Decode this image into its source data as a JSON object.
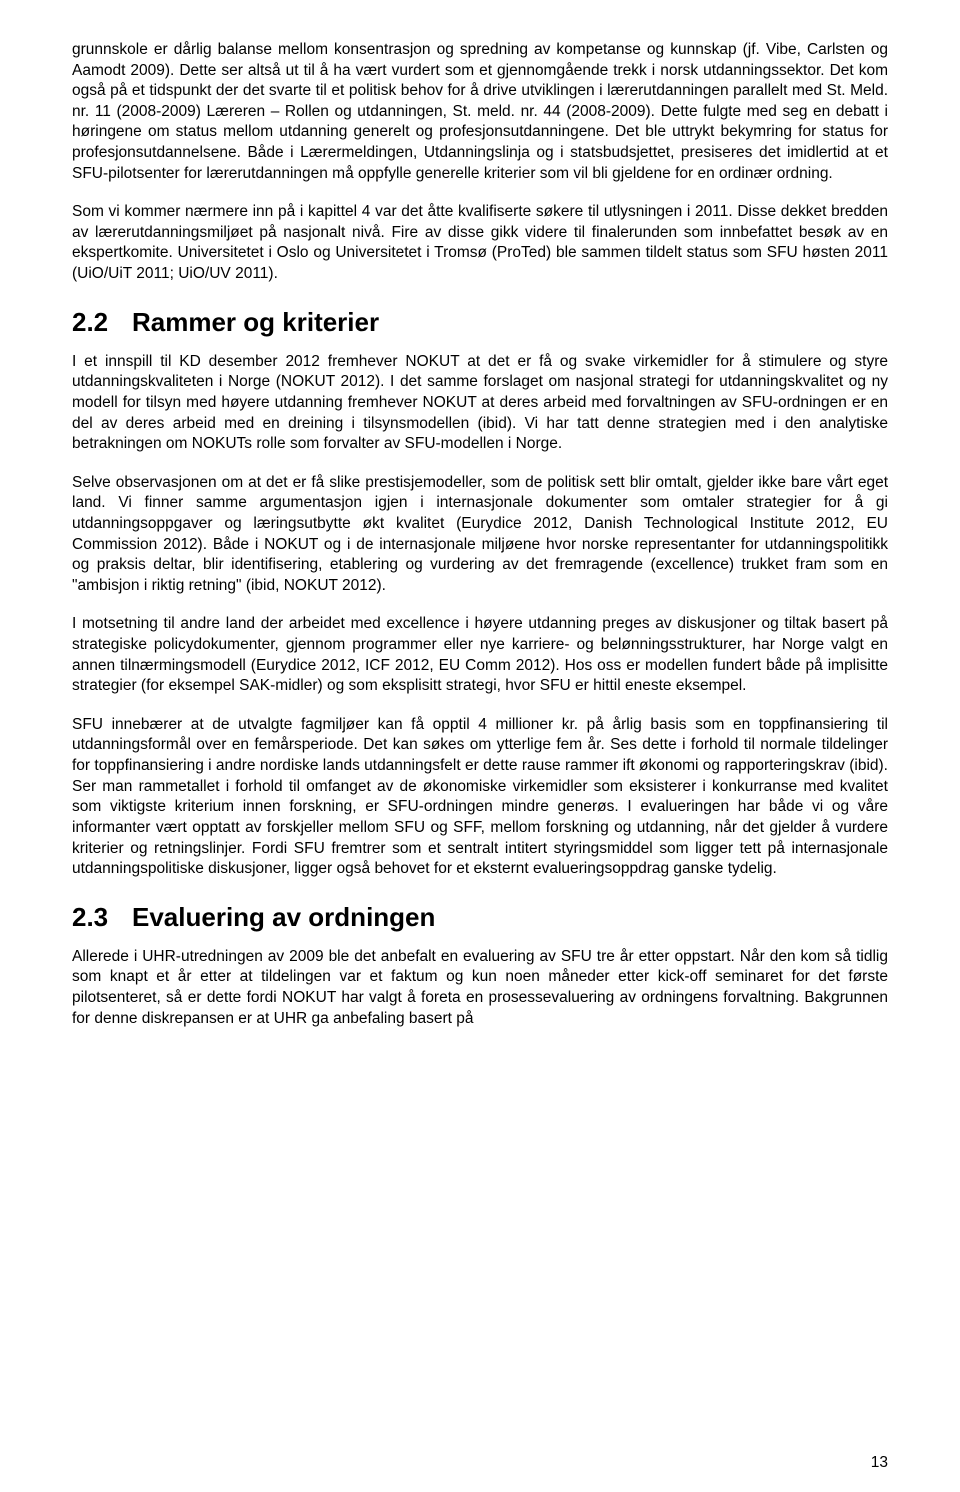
{
  "paragraphs": {
    "p1": "grunnskole er dårlig balanse mellom konsentrasjon og spredning av kompetanse og kunnskap (jf. Vibe, Carlsten og Aamodt 2009). Dette ser altså ut til å ha vært vurdert som et gjennomgående trekk i norsk utdanningssektor. Det kom også på et tidspunkt der det svarte til et politisk behov for å drive utviklingen i lærerutdanningen parallelt med St. Meld. nr. 11 (2008-2009) Læreren – Rollen og utdanningen, St. meld. nr. 44 (2008-2009). Dette fulgte med seg en debatt i høringene om status mellom utdanning generelt og profesjonsutdanningene. Det ble uttrykt bekymring for status for profesjonsutdannelsene. Både i Lærermeldingen, Utdanningslinja og i statsbudsjettet, presiseres det imidlertid at et SFU-pilotsenter for lærerutdanningen må oppfylle generelle kriterier som vil bli gjeldene for en ordinær ordning.",
    "p2": "Som vi kommer nærmere inn på i kapittel 4 var det åtte kvalifiserte søkere til utlysningen i 2011. Disse dekket bredden av lærerutdanningsmiljøet på nasjonalt nivå. Fire av disse gikk videre til finalerunden som innbefattet besøk av en ekspertkomite. Universitetet i Oslo og Universitetet i Tromsø (ProTed) ble sammen tildelt status som SFU høsten 2011 (UiO/UiT 2011; UiO/UV 2011).",
    "h_22_num": "2.2",
    "h_22_title": "Rammer og kriterier",
    "p3": "I et innspill til KD desember 2012 fremhever NOKUT at det er få og svake virkemidler for å stimulere og styre utdanningskvaliteten i Norge (NOKUT 2012). I det samme forslaget om nasjonal strategi for utdanningskvalitet og ny modell for tilsyn med høyere utdanning fremhever NOKUT at deres arbeid med forvaltningen av SFU-ordningen er en del av deres arbeid med en dreining i tilsynsmodellen (ibid). Vi har tatt denne strategien med i den analytiske betrakningen om NOKUTs rolle som forvalter av SFU-modellen i Norge.",
    "p4": "Selve observasjonen om at det er få slike prestisjemodeller, som de politisk sett blir omtalt, gjelder ikke bare vårt eget land. Vi finner samme argumentasjon igjen i internasjonale dokumenter som omtaler strategier for å gi utdanningsoppgaver og læringsutbytte økt kvalitet (Eurydice 2012, Danish Technological Institute 2012, EU Commission 2012). Både i NOKUT og i de internasjonale miljøene hvor norske representanter for utdanningspolitikk og praksis deltar, blir identifisering, etablering og vurdering av det fremragende (excellence) trukket fram som en \"ambisjon i riktig retning\" (ibid, NOKUT 2012).",
    "p5": "I motsetning til andre land der arbeidet med excellence i høyere utdanning preges av diskusjoner og tiltak basert på strategiske policydokumenter, gjennom programmer eller nye karriere- og belønningsstrukturer, har Norge valgt en annen tilnærmingsmodell (Eurydice 2012, ICF 2012, EU Comm 2012). Hos oss er modellen fundert både på implisitte strategier (for eksempel SAK-midler) og som eksplisitt strategi, hvor SFU er hittil eneste eksempel.",
    "p6": "SFU innebærer at de utvalgte fagmiljøer kan få opptil 4 millioner kr. på årlig basis som en toppfinansiering til utdanningsformål over en femårsperiode. Det kan søkes om ytterlige fem år. Ses dette i forhold til normale tildelinger for toppfinansiering i andre nordiske lands utdanningsfelt er dette rause rammer ift økonomi og rapporteringskrav (ibid). Ser man rammetallet i forhold til omfanget av de økonomiske virkemidler som eksisterer i konkurranse med kvalitet som viktigste kriterium innen forskning, er SFU-ordningen mindre generøs. I evalueringen har både vi og våre informanter vært opptatt av forskjeller mellom SFU og SFF, mellom forskning og utdanning, når det gjelder å vurdere kriterier og retningslinjer. Fordi SFU fremtrer som et sentralt intitert styringsmiddel som ligger tett på internasjonale utdanningspolitiske diskusjoner, ligger også behovet for et eksternt evalueringsoppdrag ganske tydelig.",
    "h_23_num": "2.3",
    "h_23_title": "Evaluering av ordningen",
    "p7": "Allerede i UHR-utredningen av 2009 ble det anbefalt en evaluering av SFU tre år etter oppstart. Når den kom så tidlig som knapt et år etter at tildelingen var et faktum og kun noen måneder etter kick-off seminaret for det første pilotsenteret, så er dette fordi NOKUT har valgt å foreta en prosessevaluering av ordningens forvaltning. Bakgrunnen for denne diskrepansen er at UHR ga anbefaling basert på"
  },
  "pageNumber": "13"
}
